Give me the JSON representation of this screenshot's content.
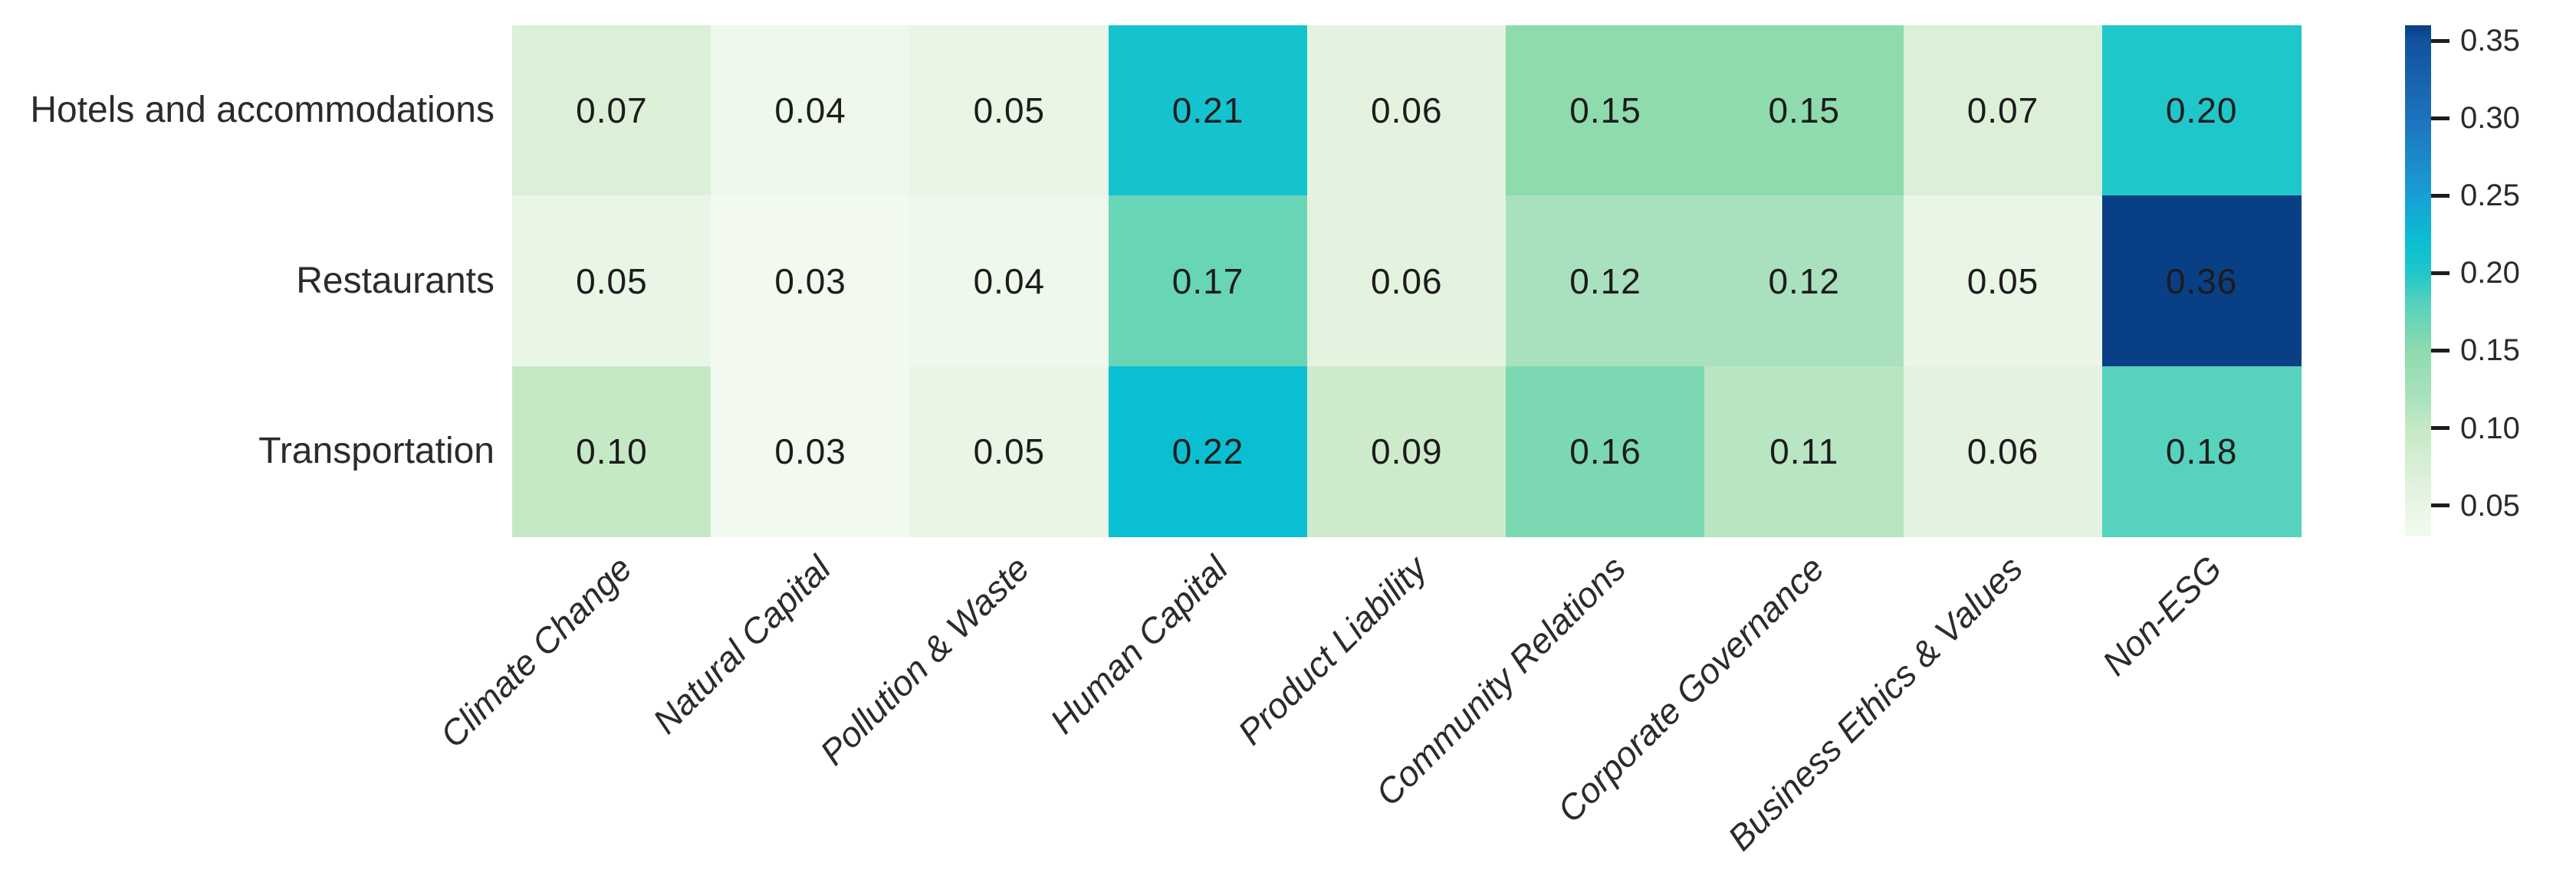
{
  "chart_data": {
    "type": "heatmap",
    "title": "",
    "xlabel": "",
    "ylabel": "",
    "rows": [
      "Hotels and accommodations",
      "Restaurants",
      "Transportation"
    ],
    "columns": [
      "Climate Change",
      "Natural Capital",
      "Pollution & Waste",
      "Human Capital",
      "Product Liability",
      "Community Relations",
      "Corporate Governance",
      "Business Ethics & Values",
      "Non-ESG"
    ],
    "values": [
      [
        0.07,
        0.04,
        0.05,
        0.21,
        0.06,
        0.15,
        0.15,
        0.07,
        0.2
      ],
      [
        0.05,
        0.03,
        0.04,
        0.17,
        0.06,
        0.12,
        0.12,
        0.05,
        0.36
      ],
      [
        0.1,
        0.03,
        0.05,
        0.22,
        0.09,
        0.16,
        0.11,
        0.06,
        0.18
      ]
    ],
    "value_decimals": 2,
    "vmin": 0.03,
    "vmax": 0.36,
    "grid": false,
    "legend_position": "right-colorbar",
    "colorbar_ticks": [
      0.05,
      0.1,
      0.15,
      0.2,
      0.25,
      0.3,
      0.35
    ],
    "colormap_stops": [
      {
        "v": 0.03,
        "c": "#f2faef"
      },
      {
        "v": 0.05,
        "c": "#e9f6e6"
      },
      {
        "v": 0.07,
        "c": "#dcf0d8"
      },
      {
        "v": 0.1,
        "c": "#c6e9c5"
      },
      {
        "v": 0.12,
        "c": "#a9e1be"
      },
      {
        "v": 0.15,
        "c": "#8edbad"
      },
      {
        "v": 0.18,
        "c": "#57d2bc"
      },
      {
        "v": 0.2,
        "c": "#1fc7ca"
      },
      {
        "v": 0.22,
        "c": "#0abfd2"
      },
      {
        "v": 0.25,
        "c": "#189fd4"
      },
      {
        "v": 0.3,
        "c": "#1e72bd"
      },
      {
        "v": 0.35,
        "c": "#11529e"
      },
      {
        "v": 0.36,
        "c": "#093f85"
      }
    ],
    "annotation_text_dark": "#1c1c1c",
    "annotation_text_light": "#ffffff"
  }
}
